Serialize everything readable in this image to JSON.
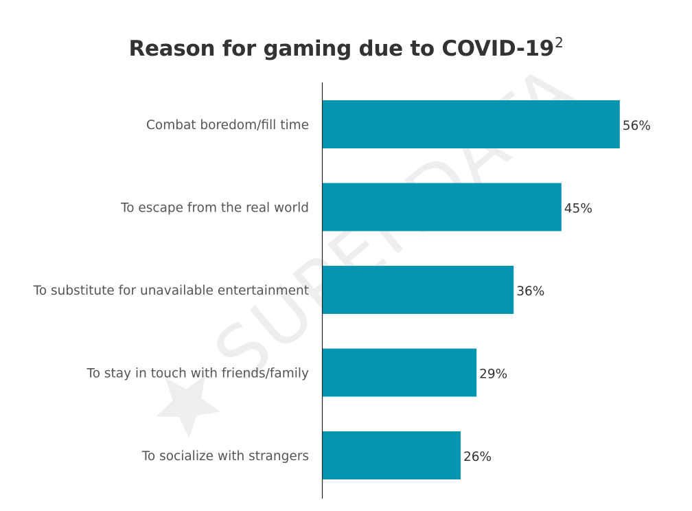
{
  "watermark": {
    "text": "SUPERDATA",
    "icon": "star-icon",
    "color": "#eeeeee"
  },
  "chart_data": {
    "type": "bar",
    "orientation": "horizontal",
    "title": "Reason for gaming due to COVID-19",
    "title_footnote": "2",
    "categories": [
      "Combat boredom/fill time",
      "To escape from the real world",
      "To substitute for unavailable entertainment",
      "To stay in touch with friends/family",
      "To socialize with strangers"
    ],
    "values": [
      56,
      45,
      36,
      29,
      26
    ],
    "value_labels": [
      "56%",
      "45%",
      "36%",
      "29%",
      "26%"
    ],
    "value_unit": "%",
    "xlim": [
      0,
      70
    ],
    "grid": false,
    "legend": "none",
    "bar_color": "#0394b0",
    "axis_color": "#222222"
  }
}
